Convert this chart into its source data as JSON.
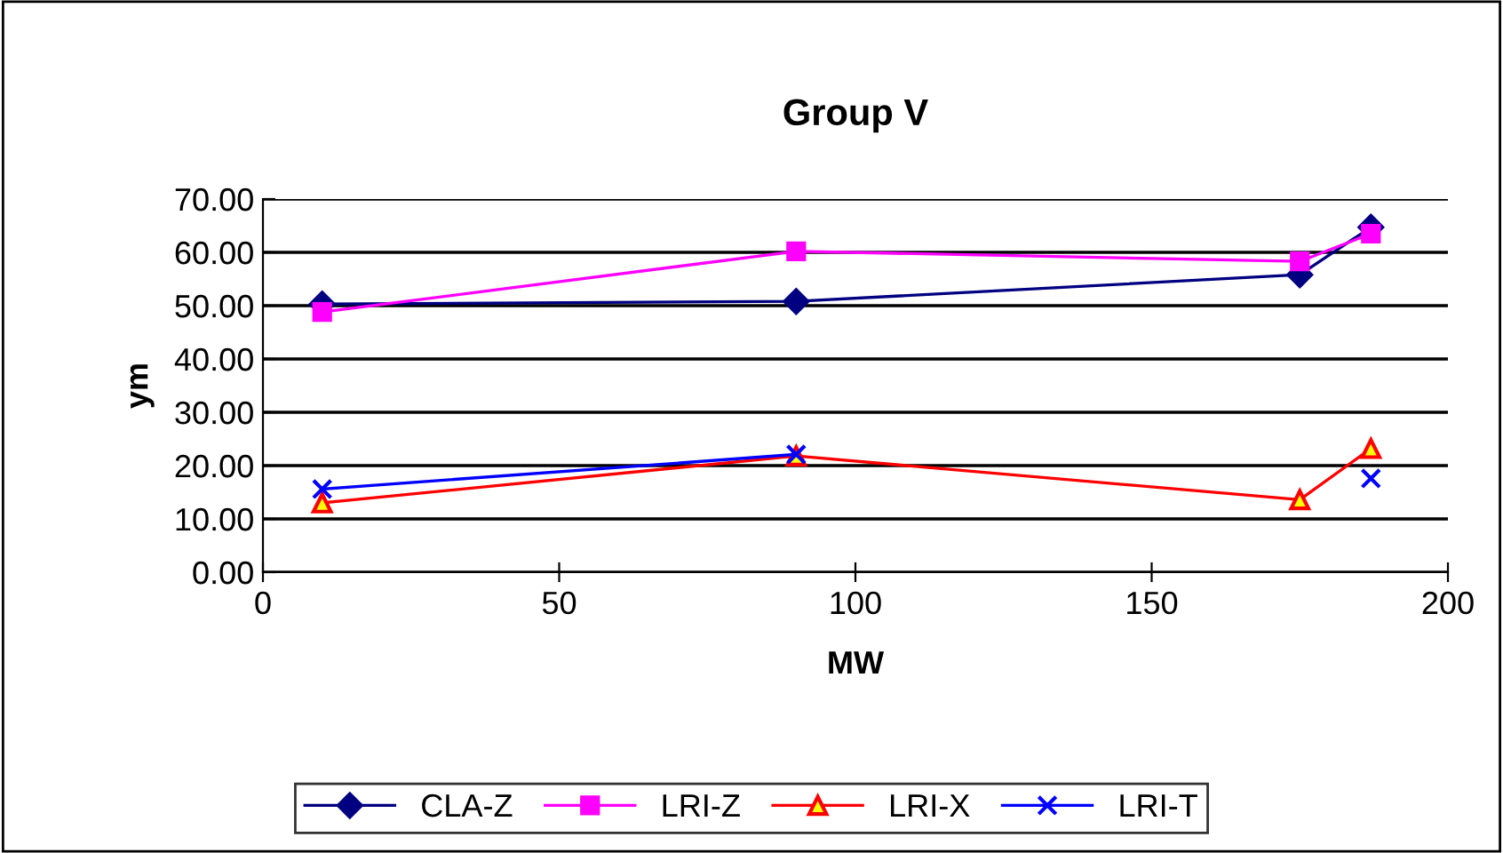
{
  "chart_data": {
    "type": "line",
    "title": "Group V",
    "xlabel": "MW",
    "ylabel": "ym",
    "x": [
      10,
      90,
      175,
      187
    ],
    "series": [
      {
        "name": "CLA-Z",
        "color": "#000080",
        "marker": "diamond",
        "values": [
          50.3,
          50.8,
          55.8,
          64.7
        ]
      },
      {
        "name": "LRI-Z",
        "color": "#ff00ff",
        "marker": "square",
        "values": [
          48.8,
          60.2,
          58.3,
          63.5
        ]
      },
      {
        "name": "LRI-X",
        "color": "#ff0000",
        "marker": "triangle",
        "values": [
          13.0,
          21.8,
          13.6,
          23.2
        ]
      },
      {
        "name": "LRI-T",
        "color": "#0000ff",
        "marker": "cross",
        "values": [
          15.6,
          22.1,
          null,
          17.6
        ]
      }
    ],
    "xlim": [
      0,
      200
    ],
    "xticks": [
      0,
      50,
      100,
      150,
      200
    ],
    "ylim": [
      0,
      70
    ],
    "yticks": [
      {
        "value": 0,
        "label": "0.00"
      },
      {
        "value": 10,
        "label": "10.00"
      },
      {
        "value": 20,
        "label": "20.00"
      },
      {
        "value": 30,
        "label": "30.00"
      },
      {
        "value": 40,
        "label": "40.00"
      },
      {
        "value": 50,
        "label": "50.00"
      },
      {
        "value": 60,
        "label": "60.00"
      },
      {
        "value": 70,
        "label": "70.00"
      }
    ],
    "grid": "y",
    "legend": "bottom"
  }
}
